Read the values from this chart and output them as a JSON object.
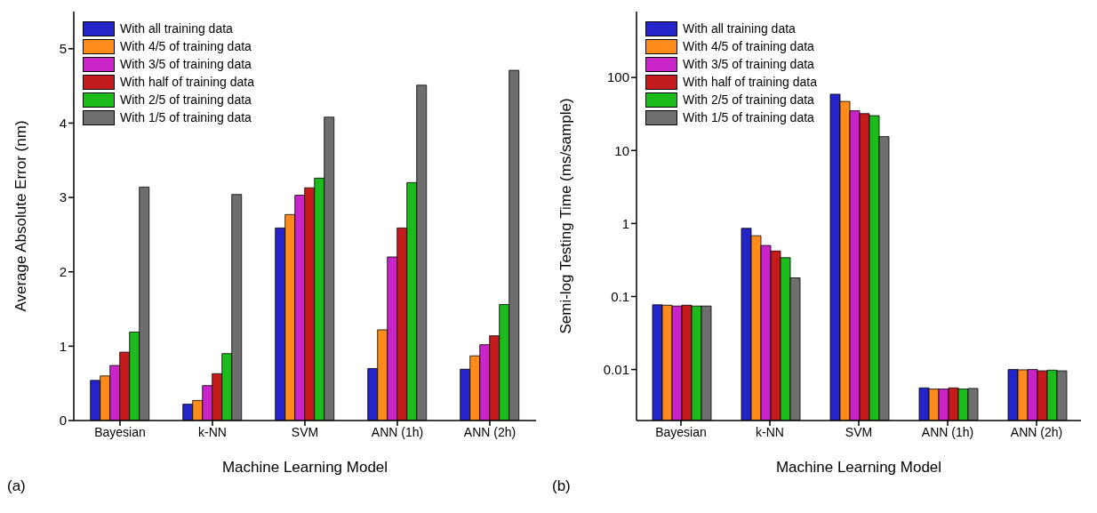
{
  "chart_data": [
    {
      "type": "bar",
      "xlabel": "Machine Learning Model",
      "ylabel": "Average Absolute Error (nm)",
      "annotations": [
        "(a)"
      ],
      "categories": [
        "Bayesian",
        "k-NN",
        "SVM",
        "ANN (1h)",
        "ANN (2h)"
      ],
      "ylim": [
        0,
        5.5
      ],
      "yticks": [
        0,
        1,
        2,
        3,
        4,
        5
      ],
      "grid": false,
      "legend": "top left",
      "series": [
        {
          "name": "With all training data",
          "color": "#2424c8",
          "values": [
            0.54,
            0.22,
            2.59,
            0.7,
            0.69
          ]
        },
        {
          "name": "With 4/5 of training data",
          "color": "#ff8c1a",
          "values": [
            0.6,
            0.27,
            2.77,
            1.22,
            0.87
          ]
        },
        {
          "name": "With 3/5 of training data",
          "color": "#c824c8",
          "values": [
            0.74,
            0.47,
            3.03,
            2.2,
            1.02
          ]
        },
        {
          "name": "With half of training data",
          "color": "#c41c1c",
          "values": [
            0.92,
            0.63,
            3.13,
            2.59,
            1.14
          ]
        },
        {
          "name": "With 2/5 of training data",
          "color": "#1cbc1c",
          "values": [
            1.19,
            0.9,
            3.26,
            3.2,
            1.56
          ]
        },
        {
          "name": "With 1/5 of training data",
          "color": "#6e6e6e",
          "values": [
            3.14,
            3.04,
            4.08,
            4.51,
            4.71
          ]
        }
      ]
    },
    {
      "type": "bar",
      "xlabel": "Machine Learning Model",
      "ylabel": "Semi-log Testing Time (ms/sample)",
      "annotations": [
        "(b)"
      ],
      "categories": [
        "Bayesian",
        "k-NN",
        "SVM",
        "ANN (1h)",
        "ANN (2h)"
      ],
      "log": "y",
      "ylim": [
        0.002,
        800
      ],
      "yticks": [
        0.01,
        0.1,
        1,
        10,
        100
      ],
      "grid": false,
      "legend": "top left",
      "series": [
        {
          "name": "With all training data",
          "color": "#2424c8",
          "values": [
            0.077,
            0.86,
            59,
            0.0056,
            0.01
          ]
        },
        {
          "name": "With 4/5 of training data",
          "color": "#ff8c1a",
          "values": [
            0.076,
            0.68,
            47,
            0.0054,
            0.0099
          ]
        },
        {
          "name": "With 3/5 of training data",
          "color": "#c824c8",
          "values": [
            0.074,
            0.5,
            35,
            0.0054,
            0.01
          ]
        },
        {
          "name": "With half of training data",
          "color": "#c41c1c",
          "values": [
            0.076,
            0.42,
            32,
            0.0056,
            0.0096
          ]
        },
        {
          "name": "With 2/5 of training data",
          "color": "#1cbc1c",
          "values": [
            0.074,
            0.34,
            30,
            0.0054,
            0.0098
          ]
        },
        {
          "name": "With 1/5 of training data",
          "color": "#6e6e6e",
          "values": [
            0.074,
            0.18,
            15.5,
            0.0055,
            0.0096
          ]
        }
      ]
    }
  ]
}
